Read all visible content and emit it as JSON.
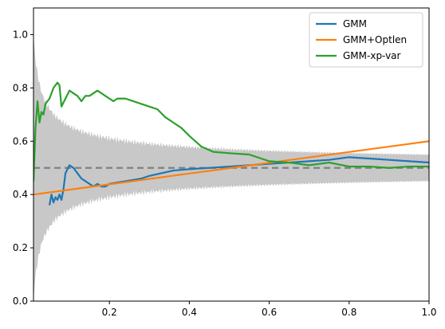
{
  "chart_data": {
    "type": "line",
    "title": "",
    "xlabel": "",
    "ylabel": "",
    "xlim": [
      0.01,
      1.0
    ],
    "ylim": [
      0.0,
      1.1
    ],
    "xticks": [
      0.2,
      0.4,
      0.6,
      0.8,
      1.0
    ],
    "xtick_labels": [
      "0.2",
      "0.4",
      "0.6",
      "0.8",
      "1.0"
    ],
    "yticks": [
      0.0,
      0.2,
      0.4,
      0.6,
      0.8,
      1.0
    ],
    "ytick_labels": [
      "0.0",
      "0.2",
      "0.4",
      "0.6",
      "0.8",
      "1.0"
    ],
    "grid": false,
    "legend_position": "top-right",
    "reference_line": {
      "y": 0.5,
      "style": "dashed",
      "color": "#808080"
    },
    "confidence_band": {
      "center": 0.5,
      "color": "#c8c8c8",
      "description": "binomial 95% interval around 0.5",
      "x_start": 0.01,
      "x_end": 1.0
    },
    "series": [
      {
        "name": "GMM",
        "color": "#1f77b4",
        "x": [
          0.05,
          0.055,
          0.06,
          0.065,
          0.07,
          0.075,
          0.08,
          0.085,
          0.09,
          0.1,
          0.11,
          0.12,
          0.13,
          0.14,
          0.15,
          0.16,
          0.17,
          0.18,
          0.19,
          0.2,
          0.22,
          0.24,
          0.26,
          0.28,
          0.3,
          0.33,
          0.36,
          0.4,
          0.45,
          0.5,
          0.55,
          0.6,
          0.65,
          0.7,
          0.75,
          0.8,
          0.85,
          0.9,
          0.95,
          1.0
        ],
        "y": [
          0.36,
          0.4,
          0.37,
          0.39,
          0.38,
          0.4,
          0.38,
          0.42,
          0.48,
          0.51,
          0.5,
          0.48,
          0.46,
          0.45,
          0.44,
          0.43,
          0.44,
          0.43,
          0.43,
          0.44,
          0.445,
          0.45,
          0.455,
          0.46,
          0.47,
          0.48,
          0.49,
          0.495,
          0.5,
          0.505,
          0.51,
          0.515,
          0.52,
          0.525,
          0.53,
          0.54,
          0.535,
          0.53,
          0.525,
          0.52
        ]
      },
      {
        "name": "GMM+Optlen",
        "color": "#ff7f0e",
        "x": [
          0.01,
          1.0
        ],
        "y": [
          0.4,
          0.6
        ]
      },
      {
        "name": "GMM-xp-var",
        "color": "#2ca02c",
        "x": [
          0.01,
          0.015,
          0.02,
          0.025,
          0.03,
          0.035,
          0.04,
          0.05,
          0.06,
          0.07,
          0.075,
          0.08,
          0.09,
          0.1,
          0.11,
          0.12,
          0.13,
          0.14,
          0.15,
          0.16,
          0.17,
          0.18,
          0.19,
          0.2,
          0.21,
          0.22,
          0.24,
          0.26,
          0.28,
          0.3,
          0.32,
          0.34,
          0.36,
          0.38,
          0.4,
          0.43,
          0.46,
          0.5,
          0.55,
          0.6,
          0.65,
          0.7,
          0.75,
          0.8,
          0.85,
          0.9,
          0.95,
          1.0
        ],
        "y": [
          0.45,
          0.65,
          0.75,
          0.67,
          0.71,
          0.7,
          0.74,
          0.76,
          0.8,
          0.82,
          0.81,
          0.73,
          0.76,
          0.79,
          0.78,
          0.77,
          0.75,
          0.77,
          0.77,
          0.78,
          0.79,
          0.78,
          0.77,
          0.76,
          0.75,
          0.76,
          0.76,
          0.75,
          0.74,
          0.73,
          0.72,
          0.69,
          0.67,
          0.65,
          0.62,
          0.58,
          0.56,
          0.555,
          0.55,
          0.525,
          0.52,
          0.51,
          0.52,
          0.505,
          0.505,
          0.5,
          0.505,
          0.505
        ]
      }
    ]
  }
}
